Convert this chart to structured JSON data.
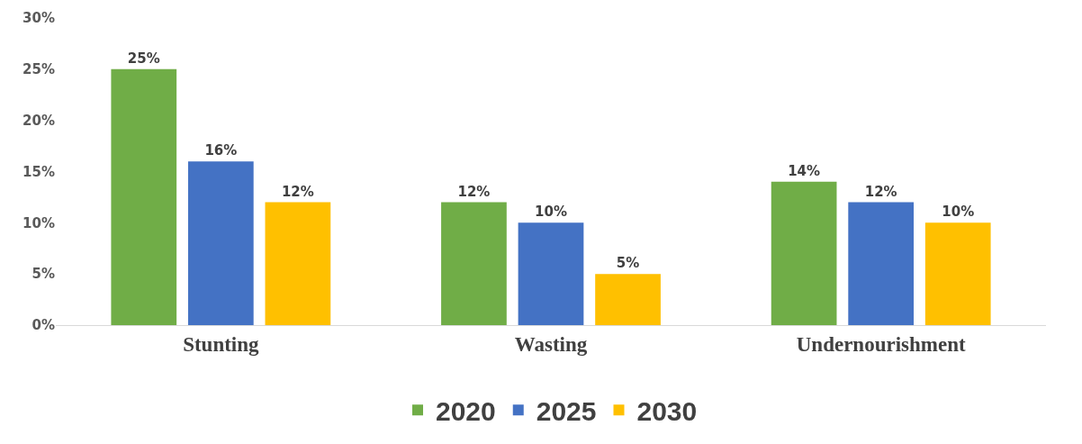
{
  "chart_data": {
    "type": "bar",
    "categories": [
      "Stunting",
      "Wasting",
      "Undernourishment"
    ],
    "series": [
      {
        "name": "2020",
        "color": "#70ad47",
        "values": [
          25,
          12,
          14
        ]
      },
      {
        "name": "2025",
        "color": "#4472c4",
        "values": [
          16,
          10,
          12
        ]
      },
      {
        "name": "2030",
        "color": "#ffc000",
        "values": [
          12,
          5,
          10
        ]
      }
    ],
    "ylim": [
      0,
      30
    ],
    "yticks": [
      {
        "value": 0,
        "label": "0%"
      },
      {
        "value": 5,
        "label": "5%"
      },
      {
        "value": 10,
        "label": "10%"
      },
      {
        "value": 15,
        "label": "15%"
      },
      {
        "value": 20,
        "label": "20%"
      },
      {
        "value": 25,
        "label": "25%"
      },
      {
        "value": 30,
        "label": "30%"
      }
    ],
    "value_labels": [
      [
        "25%",
        "12%",
        "14%"
      ],
      [
        "16%",
        "10%",
        "12%"
      ],
      [
        "12%",
        "5%",
        "10%"
      ]
    ],
    "grid": false,
    "legend": "bottom"
  }
}
